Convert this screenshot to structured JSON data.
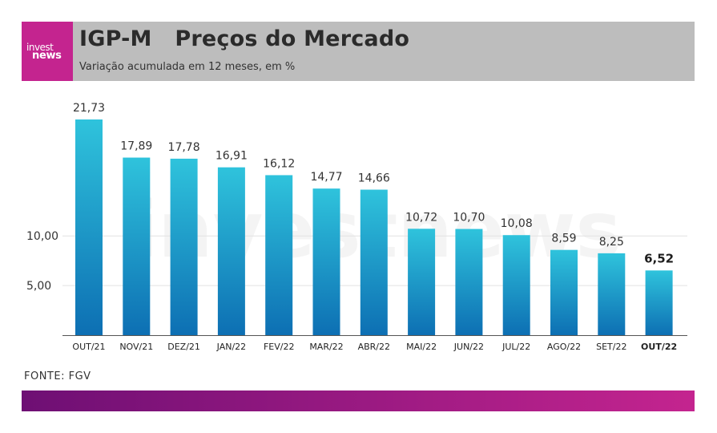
{
  "header": {
    "logo_top": "invest",
    "logo_bottom": "news",
    "title": "IGP-M   Preços do Mercado",
    "subtitle": "Variação acumulada em 12 meses, em %"
  },
  "watermark": "investnews",
  "source": "FONTE: FGV",
  "colors": {
    "bar_top": "#2fc3dc",
    "bar_bottom": "#0d6fb3",
    "header_bg": "#bdbdbd",
    "logo_bg": "#c4248f",
    "footer_start": "#6e0f74",
    "footer_end": "#c4248f"
  },
  "chart_data": {
    "type": "bar",
    "title": "IGP-M   Preços do Mercado",
    "subtitle": "Variação acumulada em 12 meses, em %",
    "categories": [
      "OUT/21",
      "NOV/21",
      "DEZ/21",
      "JAN/22",
      "FEV/22",
      "MAR/22",
      "ABR/22",
      "MAI/22",
      "JUN/22",
      "JUL/22",
      "AGO/22",
      "SET/22",
      "OUT/22"
    ],
    "values": [
      21.73,
      17.89,
      17.78,
      16.91,
      16.12,
      14.77,
      14.66,
      10.72,
      10.7,
      10.08,
      8.59,
      8.25,
      6.52
    ],
    "value_labels": [
      "21,73",
      "17,89",
      "17,78",
      "16,91",
      "16,12",
      "14,77",
      "14,66",
      "10,72",
      "10,70",
      "10,08",
      "8,59",
      "8,25",
      "6,52"
    ],
    "highlight_index": 12,
    "y_ticks": [
      5,
      10
    ],
    "y_tick_labels": [
      "5,00",
      "10,00"
    ],
    "ylim": [
      0,
      21.73
    ],
    "grid": true,
    "xlabel": "",
    "ylabel": ""
  }
}
